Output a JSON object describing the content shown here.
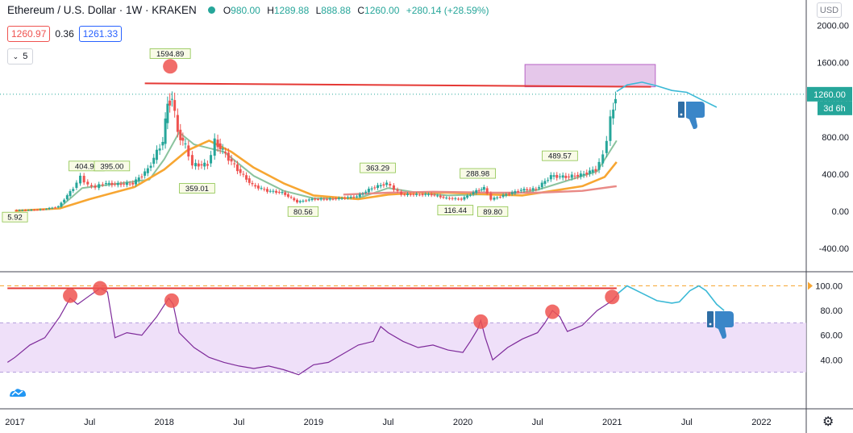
{
  "header": {
    "symbol": "Ethereum / U.S. Dollar · 1W · KRAKEN",
    "open_label": "O",
    "open": "980.00",
    "high_label": "H",
    "high": "1289.88",
    "low_label": "L",
    "low": "888.88",
    "close_label": "C",
    "close": "1260.00",
    "change": "+280.14 (+28.59%)"
  },
  "quote": {
    "bid": "1260.97",
    "spread": "0.36",
    "ask": "1261.33"
  },
  "interval": {
    "value": "5"
  },
  "currency_button": "USD",
  "colors": {
    "up": "#26a69a",
    "down": "#ef5350",
    "resistance": "#e53935",
    "projection": "#3bb9d6",
    "ema_fast": "#8bc39e",
    "ema_slow": "#f7a632",
    "ema_long": "#e98a86",
    "rsi": "#7e2a9a",
    "zone_fill": "#e9d5f7",
    "price_label_bg": "#26a69a"
  },
  "icons": {
    "thumb": "thumbs-down-icon",
    "settings": "gear-icon",
    "logo": "tradingview-logo-icon"
  },
  "chart_data": [
    {
      "type": "candlestick",
      "pane": "price",
      "x_axis": {
        "ticks": [
          "2017",
          "Jul",
          "2018",
          "Jul",
          "2019",
          "Jul",
          "2020",
          "Jul",
          "2021",
          "Jul",
          "2022"
        ],
        "range": [
          "2017-01",
          "2022-04"
        ]
      },
      "y_axis": {
        "ticks": [
          "2000.00",
          "1600.00",
          "1200.00",
          "800.00",
          "400.00",
          "0.00",
          "-400.00"
        ],
        "range": [
          -550,
          2070
        ]
      },
      "current_price_label": "1260.00",
      "countdown_label": "3d 6h",
      "series": [
        {
          "points": [
            [
              2017.0,
              9
            ],
            [
              2017.1,
              12
            ],
            [
              2017.2,
              20
            ],
            [
              2017.3,
              50
            ],
            [
              2017.4,
              250
            ],
            [
              2017.45,
              370
            ],
            [
              2017.5,
              280
            ],
            [
              2017.55,
              260
            ],
            [
              2017.6,
              300
            ],
            [
              2017.7,
              290
            ],
            [
              2017.8,
              300
            ],
            [
              2017.9,
              450
            ],
            [
              2018.0,
              760
            ],
            [
              2018.03,
              1150
            ],
            [
              2018.06,
              1230
            ],
            [
              2018.1,
              850
            ],
            [
              2018.15,
              700
            ],
            [
              2018.2,
              500
            ],
            [
              2018.3,
              500
            ],
            [
              2018.35,
              750
            ],
            [
              2018.4,
              650
            ],
            [
              2018.5,
              450
            ],
            [
              2018.6,
              280
            ],
            [
              2018.7,
              220
            ],
            [
              2018.8,
              200
            ],
            [
              2018.9,
              100
            ],
            [
              2019.0,
              130
            ],
            [
              2019.1,
              130
            ],
            [
              2019.2,
              140
            ],
            [
              2019.3,
              160
            ],
            [
              2019.4,
              250
            ],
            [
              2019.5,
              300
            ],
            [
              2019.55,
              240
            ],
            [
              2019.6,
              180
            ],
            [
              2019.7,
              180
            ],
            [
              2019.8,
              180
            ],
            [
              2019.9,
              140
            ],
            [
              2020.0,
              130
            ],
            [
              2020.1,
              220
            ],
            [
              2020.15,
              250
            ],
            [
              2020.2,
              130
            ],
            [
              2020.3,
              180
            ],
            [
              2020.4,
              230
            ],
            [
              2020.5,
              240
            ],
            [
              2020.6,
              380
            ],
            [
              2020.7,
              370
            ],
            [
              2020.8,
              390
            ],
            [
              2020.9,
              450
            ],
            [
              2020.95,
              600
            ],
            [
              2021.0,
              980
            ],
            [
              2021.03,
              1260
            ]
          ]
        },
        {
          "name": "",
          "points": [
            [
              2017.3,
              40
            ],
            [
              2017.45,
              250
            ],
            [
              2017.6,
              280
            ],
            [
              2017.9,
              340
            ],
            [
              2018.0,
              560
            ],
            [
              2018.1,
              850
            ],
            [
              2018.2,
              720
            ],
            [
              2018.4,
              640
            ],
            [
              2018.6,
              380
            ],
            [
              2018.8,
              220
            ],
            [
              2019.0,
              140
            ],
            [
              2019.3,
              140
            ],
            [
              2019.5,
              250
            ],
            [
              2019.7,
              200
            ],
            [
              2019.9,
              170
            ],
            [
              2020.1,
              180
            ],
            [
              2020.3,
              180
            ],
            [
              2020.5,
              230
            ],
            [
              2020.7,
              330
            ],
            [
              2020.9,
              430
            ],
            [
              2021.03,
              760
            ]
          ]
        },
        {
          "name": "",
          "points": [
            [
              2017.0,
              5
            ],
            [
              2017.3,
              30
            ],
            [
              2017.5,
              130
            ],
            [
              2017.8,
              260
            ],
            [
              2018.0,
              450
            ],
            [
              2018.15,
              650
            ],
            [
              2018.3,
              760
            ],
            [
              2018.45,
              640
            ],
            [
              2018.6,
              470
            ],
            [
              2018.8,
              300
            ],
            [
              2019.0,
              170
            ],
            [
              2019.3,
              130
            ],
            [
              2019.5,
              180
            ],
            [
              2019.7,
              200
            ],
            [
              2019.9,
              200
            ],
            [
              2020.2,
              180
            ],
            [
              2020.4,
              170
            ],
            [
              2020.6,
              220
            ],
            [
              2020.8,
              270
            ],
            [
              2020.95,
              370
            ],
            [
              2021.03,
              530
            ]
          ]
        },
        {
          "name": "",
          "points": [
            [
              2019.2,
              180
            ],
            [
              2019.5,
              200
            ],
            [
              2019.8,
              210
            ],
            [
              2020.2,
              200
            ],
            [
              2020.5,
              200
            ],
            [
              2020.8,
              220
            ],
            [
              2021.03,
              270
            ]
          ]
        }
      ],
      "annotations": {
        "peak_labels": [
          [
            "2018.04",
            "1594.89"
          ],
          [
            "2017.48",
            "404.99"
          ],
          [
            "2017.65",
            "395.00"
          ],
          [
            "2018.22",
            "359.01"
          ],
          [
            "2019.43",
            "363.29"
          ],
          [
            "2020.1",
            "288.98"
          ],
          [
            "2020.65",
            "489.57"
          ],
          [
            "2017.0",
            "5.92"
          ],
          [
            "2018.93",
            "80.56"
          ],
          [
            "2019.95",
            "116.44"
          ],
          [
            "2020.2",
            "89.80"
          ]
        ],
        "resistance_level": 1360,
        "target_zone": {
          "from": "2020.4",
          "to": "2021.3",
          "low": 1340,
          "high": 1580
        },
        "projection": [
          [
            2021.03,
            1290
          ],
          [
            2021.1,
            1360
          ],
          [
            2021.2,
            1390
          ],
          [
            2021.3,
            1350
          ],
          [
            2021.4,
            1300
          ],
          [
            2021.5,
            1280
          ],
          [
            2021.6,
            1200
          ],
          [
            2021.7,
            1120
          ]
        ]
      }
    },
    {
      "type": "line",
      "pane": "rsi",
      "y_axis": {
        "ticks": [
          "100.00",
          "80.00",
          "60.00",
          "40.00"
        ],
        "range": [
          21,
          113
        ]
      },
      "levels": [
        30,
        70
      ],
      "series": [
        {
          "points": [
            [
              2016.95,
              38
            ],
            [
              2017.0,
              42
            ],
            [
              2017.1,
              52
            ],
            [
              2017.2,
              58
            ],
            [
              2017.3,
              75
            ],
            [
              2017.37,
              90
            ],
            [
              2017.42,
              85
            ],
            [
              2017.5,
              92
            ],
            [
              2017.57,
              98
            ],
            [
              2017.62,
              95
            ],
            [
              2017.67,
              58
            ],
            [
              2017.75,
              62
            ],
            [
              2017.85,
              60
            ],
            [
              2017.95,
              75
            ],
            [
              2018.03,
              90
            ],
            [
              2018.06,
              85
            ],
            [
              2018.1,
              62
            ],
            [
              2018.2,
              50
            ],
            [
              2018.3,
              42
            ],
            [
              2018.4,
              38
            ],
            [
              2018.5,
              35
            ],
            [
              2018.6,
              33
            ],
            [
              2018.7,
              35
            ],
            [
              2018.8,
              32
            ],
            [
              2018.9,
              28
            ],
            [
              2019.0,
              36
            ],
            [
              2019.1,
              38
            ],
            [
              2019.2,
              45
            ],
            [
              2019.3,
              52
            ],
            [
              2019.4,
              55
            ],
            [
              2019.45,
              67
            ],
            [
              2019.5,
              62
            ],
            [
              2019.6,
              55
            ],
            [
              2019.7,
              50
            ],
            [
              2019.8,
              52
            ],
            [
              2019.9,
              48
            ],
            [
              2020.0,
              46
            ],
            [
              2020.05,
              55
            ],
            [
              2020.1,
              65
            ],
            [
              2020.12,
              72
            ],
            [
              2020.15,
              58
            ],
            [
              2020.2,
              40
            ],
            [
              2020.3,
              50
            ],
            [
              2020.4,
              57
            ],
            [
              2020.5,
              62
            ],
            [
              2020.55,
              70
            ],
            [
              2020.6,
              80
            ],
            [
              2020.65,
              75
            ],
            [
              2020.7,
              63
            ],
            [
              2020.8,
              68
            ],
            [
              2020.9,
              80
            ],
            [
              2020.95,
              84
            ],
            [
              2021.0,
              88
            ],
            [
              2021.03,
              92
            ]
          ]
        }
      ],
      "annotations": {
        "resistance_level": 98,
        "projection": [
          [
            2021.03,
            93
          ],
          [
            2021.1,
            100
          ],
          [
            2021.2,
            94
          ],
          [
            2021.3,
            88
          ],
          [
            2021.4,
            86
          ],
          [
            2021.45,
            87
          ],
          [
            2021.52,
            96
          ],
          [
            2021.58,
            100
          ],
          [
            2021.63,
            96
          ],
          [
            2021.7,
            85
          ],
          [
            2021.75,
            80
          ]
        ]
      }
    }
  ]
}
